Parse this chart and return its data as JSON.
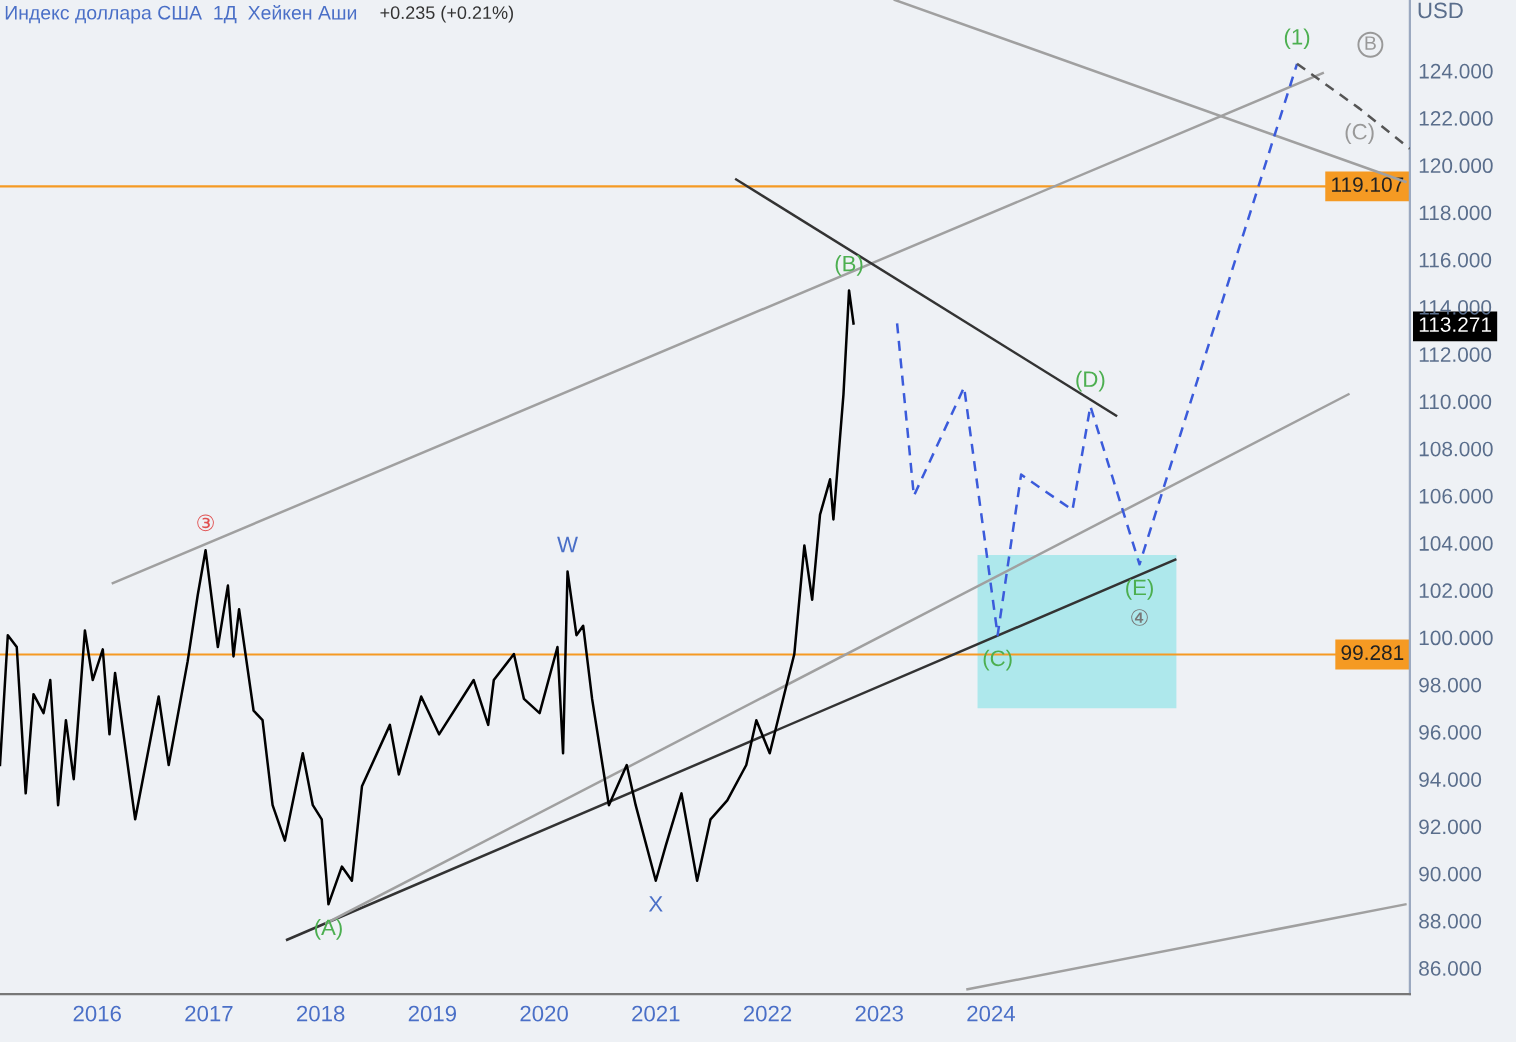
{
  "chart_data": {
    "type": "line",
    "title": "Индекс доллара США  1Д  Хейкен Аши",
    "subtitle": "+0.235 (+0.21%)",
    "ylabel": "USD",
    "xlim": [
      2015.13,
      2027.75
    ],
    "ylim": [
      84.9,
      127.0
    ],
    "xticks": [
      2016,
      2017,
      2018,
      2019,
      2020,
      2021,
      2022,
      2023,
      2024
    ],
    "yticks": [
      {
        "value": 86,
        "label": "86.000"
      },
      {
        "value": 88,
        "label": "88.000"
      },
      {
        "value": 90,
        "label": "90.000"
      },
      {
        "value": 92,
        "label": "92.000"
      },
      {
        "value": 94,
        "label": "94.000"
      },
      {
        "value": 96,
        "label": "96.000"
      },
      {
        "value": 98,
        "label": "98.000"
      },
      {
        "value": 100,
        "label": "100.000"
      },
      {
        "value": 102,
        "label": "102.000"
      },
      {
        "value": 104,
        "label": "104.000"
      },
      {
        "value": 106,
        "label": "106.000"
      },
      {
        "value": 108,
        "label": "108.000"
      },
      {
        "value": 110,
        "label": "110.000"
      },
      {
        "value": 112,
        "label": "112.000"
      },
      {
        "value": 113.271,
        "label": "113.271"
      },
      {
        "value": 114,
        "label": "114.000"
      },
      {
        "value": 116,
        "label": "116.000"
      },
      {
        "value": 118,
        "label": "118.000"
      },
      {
        "value": 120,
        "label": "120.000"
      },
      {
        "value": 122,
        "label": "122.000"
      },
      {
        "value": 124,
        "label": "124.000"
      }
    ],
    "series": [
      {
        "type": "area",
        "color": "#aee8ec",
        "x": [
          2023.88,
          2025.66,
          2025.66,
          2023.88
        ],
        "values": [
          97.0,
          97.0,
          103.5,
          103.5
        ]
      },
      {
        "color": "#a0a0a0",
        "line_style": "solid",
        "x": [
          2016.14,
          2026.97
        ],
        "values": [
          102.3,
          123.9
        ]
      },
      {
        "color": "#a0a0a0",
        "line_style": "solid",
        "x": [
          2023.14,
          2027.71
        ],
        "values": [
          127.0,
          119.3
        ]
      },
      {
        "color": "#333333",
        "line_style": "solid",
        "x": [
          2021.72,
          2025.12
        ],
        "values": [
          119.4,
          109.4
        ]
      },
      {
        "color": "#333333",
        "line_style": "solid",
        "x": [
          2017.7,
          2025.65
        ],
        "values": [
          87.2,
          103.3
        ]
      },
      {
        "color": "#a0a0a0",
        "line_style": "solid",
        "x": [
          2018.05,
          2027.2
        ],
        "values": [
          87.9,
          110.3
        ]
      },
      {
        "color": "#a0a0a0",
        "line_style": "solid",
        "x": [
          2023.79,
          2027.71
        ],
        "values": [
          85.1,
          88.7
        ]
      },
      {
        "color": "#000000",
        "line_style": "solid",
        "x": [
          2015.13,
          2015.2,
          2015.28,
          2015.36,
          2015.43,
          2015.52,
          2015.58,
          2015.65,
          2015.72,
          2015.79,
          2015.89,
          2015.96,
          2016.05,
          2016.11,
          2016.16,
          2016.34,
          2016.55,
          2016.64,
          2016.81,
          2016.9,
          2016.97,
          2017.08,
          2017.17,
          2017.22,
          2017.27,
          2017.4,
          2017.48,
          2017.57,
          2017.68,
          2017.84,
          2017.93,
          2018.01,
          2018.07,
          2018.19,
          2018.28,
          2018.37,
          2018.62,
          2018.7,
          2018.9,
          2019.06,
          2019.37,
          2019.5,
          2019.55,
          2019.73,
          2019.82,
          2019.96,
          2020.12,
          2020.17,
          2020.21,
          2020.29,
          2020.35,
          2020.43,
          2020.58,
          2020.74,
          2020.82,
          2021.0,
          2021.09,
          2021.23,
          2021.37,
          2021.49,
          2021.64,
          2021.81,
          2021.9,
          2022.02,
          2022.15,
          2022.24,
          2022.33,
          2022.4,
          2022.47,
          2022.56,
          2022.59,
          2022.68,
          2022.73,
          2022.77
        ],
        "values": [
          94.6,
          100.1,
          99.6,
          93.4,
          97.6,
          96.8,
          98.2,
          92.9,
          96.5,
          94.0,
          100.3,
          98.2,
          99.5,
          95.9,
          98.5,
          92.3,
          97.5,
          94.6,
          99.0,
          101.8,
          103.7,
          99.6,
          102.2,
          99.2,
          101.2,
          96.9,
          96.5,
          92.9,
          91.4,
          95.1,
          92.9,
          92.3,
          88.7,
          90.3,
          89.7,
          93.7,
          96.3,
          94.2,
          97.5,
          95.9,
          98.2,
          96.3,
          98.2,
          99.3,
          97.4,
          96.8,
          99.6,
          95.1,
          102.8,
          100.1,
          100.5,
          97.4,
          92.9,
          94.6,
          92.9,
          89.7,
          91.2,
          93.4,
          89.7,
          92.3,
          93.1,
          94.6,
          96.5,
          95.1,
          97.6,
          99.3,
          103.9,
          101.6,
          105.2,
          106.7,
          105.0,
          110.3,
          114.7,
          113.3
        ]
      },
      {
        "color": "#3b5bdb",
        "line_style": "dashed",
        "x": [
          2023.16,
          2023.31,
          2023.76,
          2024.06,
          2024.27,
          2024.73,
          2024.89,
          2025.33,
          2026.74
        ],
        "values": [
          113.3,
          106.0,
          110.6,
          100.1,
          106.9,
          105.4,
          109.8,
          103.1,
          124.3
        ]
      },
      {
        "color": "#555555",
        "line_style": "dashed",
        "x": [
          2026.74,
          2027.3,
          2027.75
        ],
        "values": [
          124.3,
          122.4,
          120.7
        ]
      }
    ],
    "ref_lines": [
      {
        "axis": "y",
        "value": 119.107,
        "label": "119.107",
        "color": "#f59a23"
      },
      {
        "axis": "y",
        "value": 99.281,
        "label": "99.281",
        "color": "#f59a23"
      }
    ],
    "annotations": [
      {
        "text": "③",
        "x": 2016.97,
        "y": 103.7
      },
      {
        "text": "(A)",
        "x": 2018.07,
        "y": 88.7
      },
      {
        "text": "W",
        "x": 2020.21,
        "y": 102.8
      },
      {
        "text": "X",
        "x": 2021.0,
        "y": 89.7
      },
      {
        "text": "(B)",
        "x": 2022.73,
        "y": 114.7
      },
      {
        "text": "(C)",
        "x": 2024.06,
        "y": 100.1
      },
      {
        "text": "(D)",
        "x": 2024.89,
        "y": 109.8
      },
      {
        "text": "(E)",
        "x": 2025.33,
        "y": 103.1
      },
      {
        "text": "④",
        "x": 2025.33,
        "y": 103.1
      },
      {
        "text": "(1)",
        "x": 2026.74,
        "y": 124.3
      },
      "B",
      {
        "text": "(C)",
        "x": 2027.3,
        "y": 122.4
      }
    ]
  }
}
